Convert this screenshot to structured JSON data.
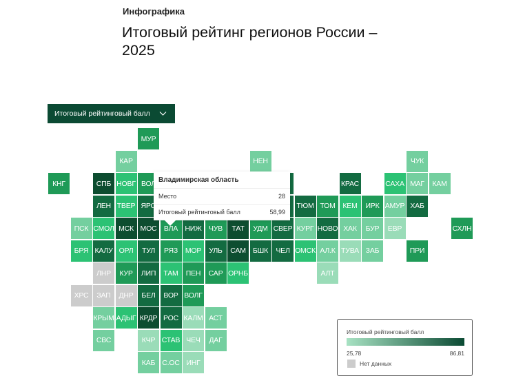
{
  "header": {
    "kicker": "Инфографика",
    "title": "Итоговый рейтинг регионов России – 2025"
  },
  "metric_selector": {
    "selected": "Итоговый рейтинговый балл",
    "icon": "chevron-down-icon"
  },
  "colors": {
    "darkest": "#0d4d30",
    "dark": "#136b41",
    "medium": "#1f9a57",
    "bright": "#2cc274",
    "light": "#74cf9f",
    "pale": "#9adcb8",
    "nodata": "#cccccc",
    "dropdown_bg": "#0b4a33"
  },
  "tooltip": {
    "region": "Владимирская область",
    "rows": [
      {
        "label": "Место",
        "value": "28"
      },
      {
        "label": "Итоговый рейтинговый балл",
        "value": "58,99"
      }
    ]
  },
  "legend": {
    "title": "Итоговый рейтинговый балл",
    "min": "25,78",
    "max": "86,81",
    "nodata_label": "Нет данных",
    "gradient_from": "#a8e2c3",
    "gradient_to": "#0b4a33"
  },
  "chart_data": {
    "type": "heatmap",
    "title": "Итоговый рейтинг регионов России – 2025",
    "subtitle": "Итоговый рейтинговый балл",
    "scale": {
      "min": 25.78,
      "max": 86.81
    },
    "layout": "tile grid map (col,row)",
    "highlighted": {
      "code": "ВЛА",
      "name": "Владимирская область",
      "rank": 28,
      "score": 58.99
    },
    "tiles": [
      {
        "code": "МУР",
        "col": 4,
        "row": 0,
        "shade": "medium"
      },
      {
        "code": "КАР",
        "col": 3,
        "row": 1,
        "shade": "light"
      },
      {
        "code": "НЕН",
        "col": 9,
        "row": 1,
        "shade": "light"
      },
      {
        "code": "ЧУК",
        "col": 16,
        "row": 1,
        "shade": "light"
      },
      {
        "code": "КНГ",
        "col": 0,
        "row": 2,
        "shade": "medium"
      },
      {
        "code": "СПБ",
        "col": 2,
        "row": 2,
        "shade": "darkest"
      },
      {
        "code": "НОВГ",
        "col": 3,
        "row": 2,
        "shade": "bright"
      },
      {
        "code": "ВОЛ",
        "col": 4,
        "row": 2,
        "shade": "medium"
      },
      {
        "code": "",
        "col": 10,
        "row": 2,
        "shade": "dark"
      },
      {
        "code": "КРАС",
        "col": 13,
        "row": 2,
        "shade": "dark"
      },
      {
        "code": "САХА",
        "col": 15,
        "row": 2,
        "shade": "bright"
      },
      {
        "code": "МАГ",
        "col": 16,
        "row": 2,
        "shade": "light"
      },
      {
        "code": "КАМ",
        "col": 17,
        "row": 2,
        "shade": "light"
      },
      {
        "code": "ЛЕН",
        "col": 2,
        "row": 3,
        "shade": "dark"
      },
      {
        "code": "ТВЕР",
        "col": 3,
        "row": 3,
        "shade": "bright"
      },
      {
        "code": "ЯРО",
        "col": 4,
        "row": 3,
        "shade": "dark"
      },
      {
        "code": "",
        "col": 10,
        "row": 3,
        "shade": "dark"
      },
      {
        "code": "ТЮМ",
        "col": 11,
        "row": 3,
        "shade": "dark"
      },
      {
        "code": "ТОМ",
        "col": 12,
        "row": 3,
        "shade": "medium"
      },
      {
        "code": "КЕМ",
        "col": 13,
        "row": 3,
        "shade": "bright"
      },
      {
        "code": "ИРК",
        "col": 14,
        "row": 3,
        "shade": "medium"
      },
      {
        "code": "АМУР",
        "col": 15,
        "row": 3,
        "shade": "light"
      },
      {
        "code": "ХАБ",
        "col": 16,
        "row": 3,
        "shade": "dark"
      },
      {
        "code": "ПСК",
        "col": 1,
        "row": 4,
        "shade": "light"
      },
      {
        "code": "СМОЛ",
        "col": 2,
        "row": 4,
        "shade": "bright"
      },
      {
        "code": "МСК",
        "col": 3,
        "row": 4,
        "shade": "darkest"
      },
      {
        "code": "МОС",
        "col": 4,
        "row": 4,
        "shade": "darkest"
      },
      {
        "code": "ВЛА",
        "col": 5,
        "row": 4,
        "shade": "medium"
      },
      {
        "code": "НИЖ",
        "col": 6,
        "row": 4,
        "shade": "dark"
      },
      {
        "code": "ЧУВ",
        "col": 7,
        "row": 4,
        "shade": "medium"
      },
      {
        "code": "ТАТ",
        "col": 8,
        "row": 4,
        "shade": "darkest"
      },
      {
        "code": "УДМ",
        "col": 9,
        "row": 4,
        "shade": "medium"
      },
      {
        "code": "СВЕР",
        "col": 10,
        "row": 4,
        "shade": "dark"
      },
      {
        "code": "КУРГ",
        "col": 11,
        "row": 4,
        "shade": "light"
      },
      {
        "code": "НОВО",
        "col": 12,
        "row": 4,
        "shade": "dark"
      },
      {
        "code": "ХАК",
        "col": 13,
        "row": 4,
        "shade": "light"
      },
      {
        "code": "БУР",
        "col": 14,
        "row": 4,
        "shade": "light"
      },
      {
        "code": "ЕВР",
        "col": 15,
        "row": 4,
        "shade": "pale"
      },
      {
        "code": "СХЛН",
        "col": 18,
        "row": 4,
        "shade": "medium"
      },
      {
        "code": "БРЯ",
        "col": 1,
        "row": 5,
        "shade": "bright"
      },
      {
        "code": "КАЛУ",
        "col": 2,
        "row": 5,
        "shade": "dark"
      },
      {
        "code": "ОРЛ",
        "col": 3,
        "row": 5,
        "shade": "bright"
      },
      {
        "code": "ТУЛ",
        "col": 4,
        "row": 5,
        "shade": "dark"
      },
      {
        "code": "РЯЗ",
        "col": 5,
        "row": 5,
        "shade": "medium"
      },
      {
        "code": "МОР",
        "col": 6,
        "row": 5,
        "shade": "bright"
      },
      {
        "code": "УЛЬ",
        "col": 7,
        "row": 5,
        "shade": "dark"
      },
      {
        "code": "САМ",
        "col": 8,
        "row": 5,
        "shade": "darkest"
      },
      {
        "code": "БШК",
        "col": 9,
        "row": 5,
        "shade": "dark"
      },
      {
        "code": "ЧЕЛ",
        "col": 10,
        "row": 5,
        "shade": "dark"
      },
      {
        "code": "ОМСК",
        "col": 11,
        "row": 5,
        "shade": "bright"
      },
      {
        "code": "АЛ.К",
        "col": 12,
        "row": 5,
        "shade": "light"
      },
      {
        "code": "ТУВА",
        "col": 13,
        "row": 5,
        "shade": "pale"
      },
      {
        "code": "ЗАБ",
        "col": 14,
        "row": 5,
        "shade": "light"
      },
      {
        "code": "ПРИ",
        "col": 16,
        "row": 5,
        "shade": "medium"
      },
      {
        "code": "ЛНР",
        "col": 2,
        "row": 6,
        "shade": "nodata"
      },
      {
        "code": "КУР",
        "col": 3,
        "row": 6,
        "shade": "medium"
      },
      {
        "code": "ЛИП",
        "col": 4,
        "row": 6,
        "shade": "dark"
      },
      {
        "code": "ТАМ",
        "col": 5,
        "row": 6,
        "shade": "bright"
      },
      {
        "code": "ПЕН",
        "col": 6,
        "row": 6,
        "shade": "medium"
      },
      {
        "code": "САР",
        "col": 7,
        "row": 6,
        "shade": "medium"
      },
      {
        "code": "ОРНБ",
        "col": 8,
        "row": 6,
        "shade": "bright"
      },
      {
        "code": "АЛТ",
        "col": 12,
        "row": 6,
        "shade": "pale"
      },
      {
        "code": "ХРС",
        "col": 1,
        "row": 7,
        "shade": "nodata"
      },
      {
        "code": "ЗАП",
        "col": 2,
        "row": 7,
        "shade": "nodata"
      },
      {
        "code": "ДНР",
        "col": 3,
        "row": 7,
        "shade": "nodata"
      },
      {
        "code": "БЕЛ",
        "col": 4,
        "row": 7,
        "shade": "dark"
      },
      {
        "code": "ВОР",
        "col": 5,
        "row": 7,
        "shade": "dark"
      },
      {
        "code": "ВОЛГ",
        "col": 6,
        "row": 7,
        "shade": "medium"
      },
      {
        "code": "КРЫМ",
        "col": 2,
        "row": 8,
        "shade": "light"
      },
      {
        "code": "АДЫГ",
        "col": 3,
        "row": 8,
        "shade": "bright"
      },
      {
        "code": "КРДР",
        "col": 4,
        "row": 8,
        "shade": "darkest"
      },
      {
        "code": "РОС",
        "col": 5,
        "row": 8,
        "shade": "dark"
      },
      {
        "code": "КАЛМ",
        "col": 6,
        "row": 8,
        "shade": "pale"
      },
      {
        "code": "АСТ",
        "col": 7,
        "row": 8,
        "shade": "light"
      },
      {
        "code": "СВС",
        "col": 2,
        "row": 9,
        "shade": "light"
      },
      {
        "code": "КЧР",
        "col": 4,
        "row": 9,
        "shade": "pale"
      },
      {
        "code": "СТАВ",
        "col": 5,
        "row": 9,
        "shade": "bright"
      },
      {
        "code": "ЧЕЧ",
        "col": 6,
        "row": 9,
        "shade": "pale"
      },
      {
        "code": "ДАГ",
        "col": 7,
        "row": 9,
        "shade": "light"
      },
      {
        "code": "КАБ",
        "col": 4,
        "row": 10,
        "shade": "light"
      },
      {
        "code": "С.ОС",
        "col": 5,
        "row": 10,
        "shade": "light"
      },
      {
        "code": "ИНГ",
        "col": 6,
        "row": 10,
        "shade": "pale"
      }
    ]
  }
}
